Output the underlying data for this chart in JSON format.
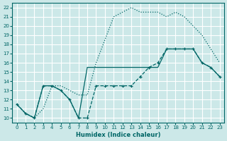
{
  "xlabel": "Humidex (Indice chaleur)",
  "bg_color": "#cce8e8",
  "grid_color": "#ffffff",
  "line_color": "#006666",
  "xlim": [
    -0.5,
    23.5
  ],
  "ylim": [
    9.5,
    22.5
  ],
  "xticks": [
    0,
    1,
    2,
    3,
    4,
    5,
    6,
    7,
    8,
    9,
    10,
    11,
    12,
    13,
    14,
    15,
    16,
    17,
    18,
    19,
    20,
    21,
    22,
    23
  ],
  "yticks": [
    10,
    11,
    12,
    13,
    14,
    15,
    16,
    17,
    18,
    19,
    20,
    21,
    22
  ],
  "curve_dotted_x": [
    0,
    1,
    2,
    3,
    4,
    5,
    6,
    7,
    8,
    9,
    10,
    11,
    12,
    13,
    14,
    15,
    16,
    17,
    18,
    19,
    20,
    21,
    22,
    23
  ],
  "curve_dotted_y": [
    11.5,
    10.5,
    10.0,
    11.0,
    13.5,
    13.5,
    13.0,
    12.5,
    12.5,
    16.0,
    18.5,
    21.0,
    21.5,
    22.0,
    21.5,
    21.5,
    21.5,
    21.0,
    21.5,
    21.0,
    20.0,
    19.0,
    17.5,
    16.0
  ],
  "curve_dashed_x": [
    0,
    1,
    2,
    3,
    4,
    5,
    6,
    7,
    8,
    9,
    10,
    11,
    12,
    13,
    14,
    15,
    16,
    17,
    18,
    19,
    20,
    21,
    22,
    23
  ],
  "curve_dashed_y": [
    11.5,
    10.5,
    10.0,
    13.5,
    13.5,
    13.0,
    12.0,
    10.0,
    10.0,
    13.5,
    13.5,
    13.5,
    13.5,
    13.5,
    14.5,
    15.5,
    16.0,
    17.5,
    17.5,
    17.5,
    17.5,
    16.0,
    15.5,
    14.5
  ],
  "curve_solid_x": [
    0,
    1,
    2,
    3,
    4,
    5,
    6,
    7,
    8,
    9,
    10,
    11,
    12,
    13,
    14,
    15,
    16,
    17,
    18,
    19,
    20,
    21,
    22,
    23
  ],
  "curve_solid_y": [
    11.5,
    10.5,
    10.0,
    13.5,
    13.5,
    13.0,
    12.0,
    10.0,
    15.5,
    15.5,
    15.5,
    15.5,
    15.5,
    15.5,
    15.5,
    15.5,
    15.5,
    17.5,
    17.5,
    17.5,
    17.5,
    16.0,
    15.5,
    14.5
  ]
}
